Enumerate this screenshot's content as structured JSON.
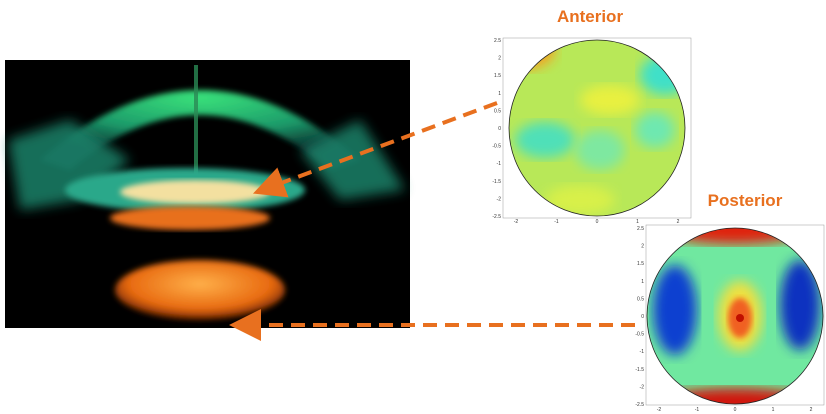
{
  "anterior": {
    "label": "Anterior",
    "xticks": [
      "-2",
      "-1",
      "0",
      "1",
      "2"
    ],
    "yticks": [
      "2.5",
      "2",
      "1.5",
      "1",
      "0.5",
      "0",
      "-0.5",
      "-1",
      "-1.5",
      "-2",
      "-2.5"
    ]
  },
  "posterior": {
    "label": "Posterior",
    "xticks": [
      "-2",
      "-1",
      "0",
      "1",
      "2"
    ],
    "yticks": [
      "2.5",
      "2",
      "1.5",
      "1",
      "0.5",
      "0",
      "-0.5",
      "-1",
      "-1.5",
      "-2",
      "-2.5"
    ]
  }
}
